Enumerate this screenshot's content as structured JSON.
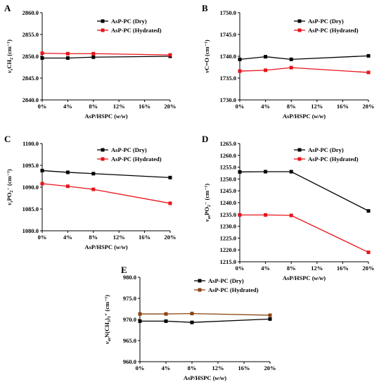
{
  "figure": {
    "panels": [
      "A",
      "B",
      "C",
      "D",
      "E"
    ],
    "legend": [
      "AsP-PC (Dry)",
      "AsP-PC (Hydrated)"
    ],
    "xlabel": "AsP/HSPC (w/w)",
    "colors": {
      "dry": "#000000",
      "hydrated_red": "#e8141b",
      "hydrated_brown": "#8b4513"
    }
  },
  "chart_data": [
    {
      "type": "line",
      "panel": "A",
      "ylabel": "νsCH2 (cm⁻¹)",
      "xlabel": "AsP/HSPC (w/w)",
      "x_ticks": [
        "0%",
        "4%",
        "8%",
        "12%",
        "16%",
        "20%"
      ],
      "y_ticks": [
        "2840.0",
        "2845.0",
        "2850.0",
        "2855.0",
        "2860.0"
      ],
      "ylim": [
        2840,
        2860
      ],
      "xlim": [
        0,
        20
      ],
      "grid": false,
      "legend_position": "top-right",
      "series": [
        {
          "name": "AsP-PC (Dry)",
          "color": "#000000",
          "x": [
            0,
            4,
            8,
            20
          ],
          "y": [
            2849.6,
            2849.6,
            2849.8,
            2850.0
          ]
        },
        {
          "name": "AsP-PC (Hydrated)",
          "color": "#e8141b",
          "x": [
            0,
            4,
            8,
            20
          ],
          "y": [
            2850.7,
            2850.6,
            2850.6,
            2850.3
          ]
        }
      ]
    },
    {
      "type": "line",
      "panel": "B",
      "ylabel": "νC=O (cm⁻¹)",
      "xlabel": "AsP/HSPC (w/w)",
      "x_ticks": [
        "0%",
        "4%",
        "8%",
        "12%",
        "16%",
        "20%"
      ],
      "y_ticks": [
        "1730.0",
        "1735.0",
        "1740.0",
        "1745.0",
        "1750.0"
      ],
      "ylim": [
        1730,
        1750
      ],
      "xlim": [
        0,
        20
      ],
      "grid": false,
      "legend_position": "top-right",
      "series": [
        {
          "name": "AsP-PC (Dry)",
          "color": "#000000",
          "x": [
            0,
            4,
            8,
            20
          ],
          "y": [
            1739.3,
            1739.9,
            1739.3,
            1740.1
          ]
        },
        {
          "name": "AsP-PC (Hydrated)",
          "color": "#e8141b",
          "x": [
            0,
            4,
            8,
            20
          ],
          "y": [
            1736.6,
            1736.8,
            1737.4,
            1736.3
          ]
        }
      ]
    },
    {
      "type": "line",
      "panel": "C",
      "ylabel": "νsPO2⁻ (cm⁻¹)",
      "xlabel": "AsP/HSPC (w/w)",
      "x_ticks": [
        "0%",
        "4%",
        "8%",
        "12%",
        "16%",
        "20%"
      ],
      "y_ticks": [
        "1080.0",
        "1085.0",
        "1090.0",
        "1095.0",
        "1100.0"
      ],
      "ylim": [
        1080,
        1100
      ],
      "xlim": [
        0,
        20
      ],
      "grid": false,
      "legend_position": "top-right",
      "series": [
        {
          "name": "AsP-PC (Dry)",
          "color": "#000000",
          "x": [
            0,
            4,
            8,
            20
          ],
          "y": [
            1093.8,
            1093.4,
            1093.1,
            1092.2
          ]
        },
        {
          "name": "AsP-PC (Hydrated)",
          "color": "#e8141b",
          "x": [
            0,
            4,
            8,
            20
          ],
          "y": [
            1090.8,
            1090.2,
            1089.5,
            1086.3
          ]
        }
      ]
    },
    {
      "type": "line",
      "panel": "D",
      "ylabel": "νasPO2⁻ (cm⁻¹)",
      "xlabel": "AsP/HSPC (w/w)",
      "x_ticks": [
        "0%",
        "4%",
        "8%",
        "12%",
        "16%",
        "20%"
      ],
      "y_ticks": [
        "1215.0",
        "1220.0",
        "1225.0",
        "1230.0",
        "1235.0",
        "1240.0",
        "1245.0",
        "1250.0",
        "1255.0",
        "1260.0",
        "1265.0"
      ],
      "ylim": [
        1215,
        1265
      ],
      "xlim": [
        0,
        20
      ],
      "grid": false,
      "legend_position": "top-right",
      "series": [
        {
          "name": "AsP-PC (Dry)",
          "color": "#000000",
          "x": [
            0,
            4,
            8,
            20
          ],
          "y": [
            1253.0,
            1253.1,
            1253.1,
            1236.5
          ]
        },
        {
          "name": "AsP-PC (Hydrated)",
          "color": "#e8141b",
          "x": [
            0,
            4,
            8,
            20
          ],
          "y": [
            1234.8,
            1234.8,
            1234.6,
            1219.0
          ]
        }
      ]
    },
    {
      "type": "line",
      "panel": "E",
      "ylabel": "νasN(CH3)3⁺ (cm⁻¹)",
      "xlabel": "AsP/HSPC (w/w)",
      "x_ticks": [
        "0%",
        "4%",
        "8%",
        "12%",
        "16%",
        "20%"
      ],
      "y_ticks": [
        "960.0",
        "965.0",
        "970.0",
        "975.0",
        "980.0"
      ],
      "ylim": [
        960,
        980
      ],
      "xlim": [
        0,
        20
      ],
      "grid": false,
      "legend_position": "top-right",
      "series": [
        {
          "name": "AsP-PC (Dry)",
          "color": "#000000",
          "x": [
            0,
            4,
            8,
            20
          ],
          "y": [
            969.6,
            969.6,
            969.3,
            970.1
          ]
        },
        {
          "name": "AsP-PC (Hydrated)",
          "color": "#8b4513",
          "x": [
            0,
            4,
            8,
            20
          ],
          "y": [
            971.3,
            971.3,
            971.4,
            971.0
          ]
        }
      ]
    }
  ]
}
